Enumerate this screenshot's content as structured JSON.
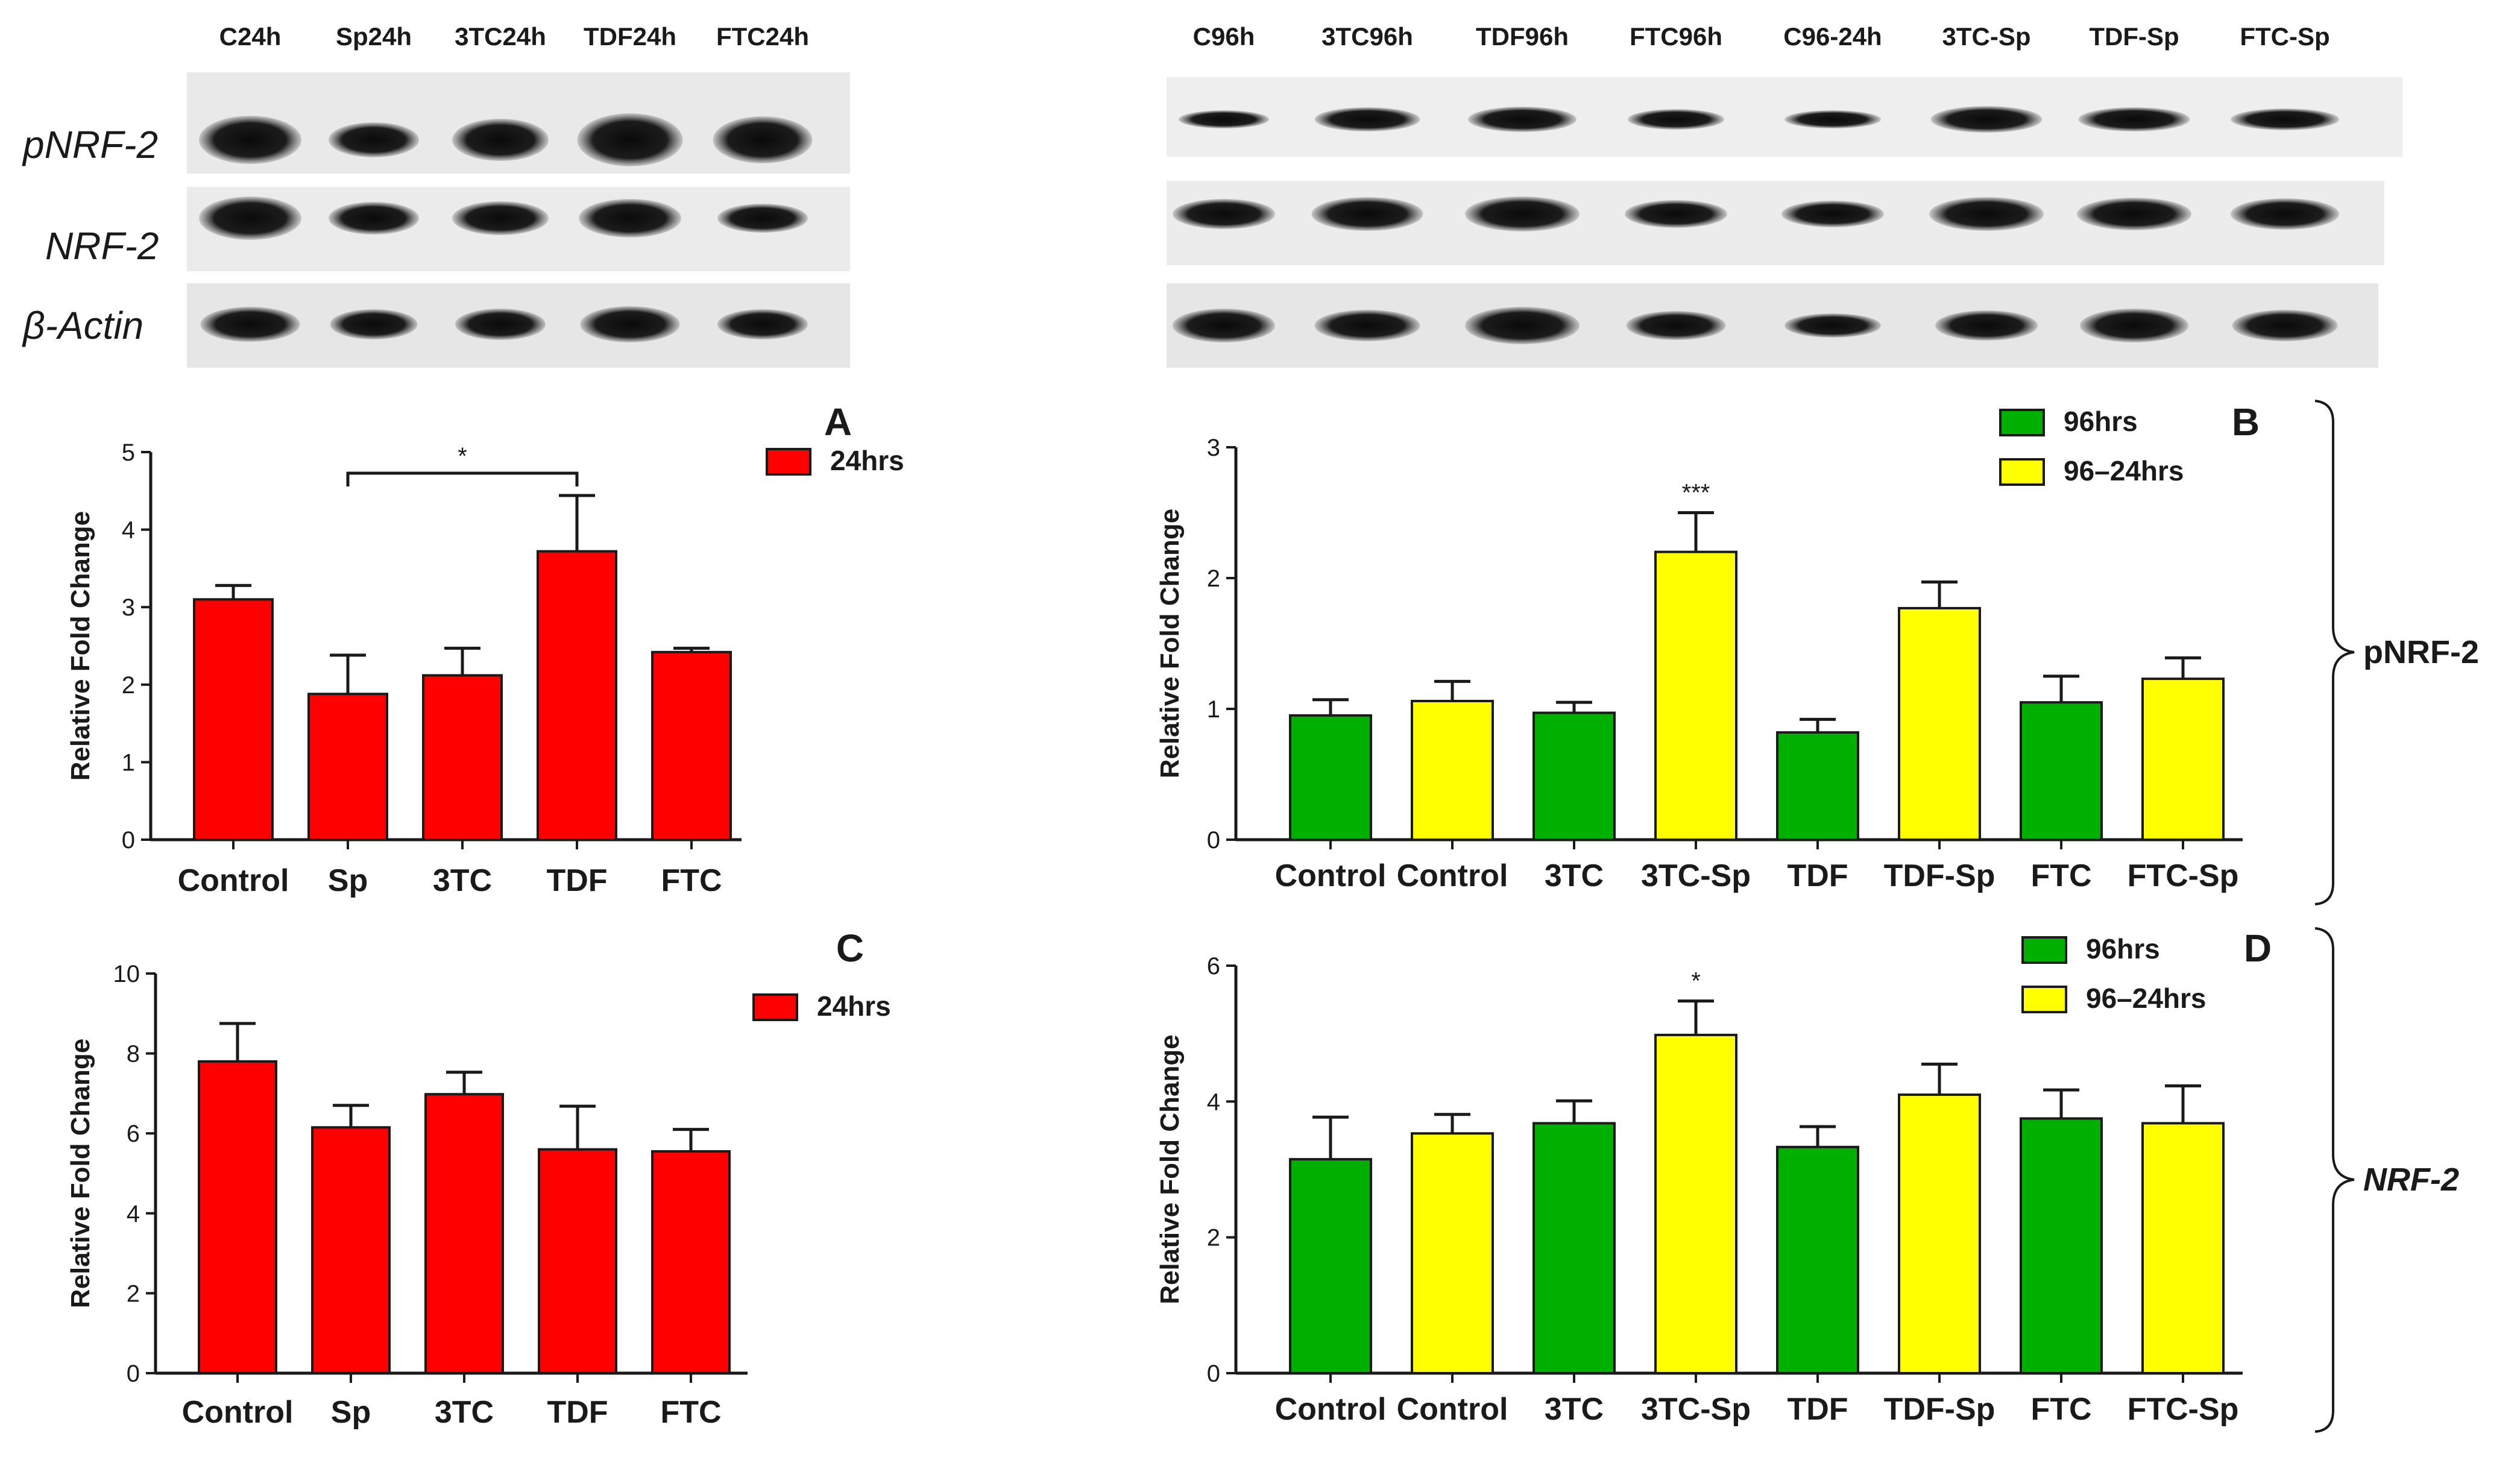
{
  "blots": {
    "left": {
      "lanes": [
        "C24h",
        "Sp24h",
        "3TC24h",
        "TDF24h",
        "FTC24h"
      ],
      "rows": [
        "pNRF-2",
        "NRF-2",
        "β-Actin"
      ]
    },
    "right": {
      "lanes": [
        "C96h",
        "3TC96h",
        "TDF96h",
        "FTC96h",
        "C96-24h",
        "3TC-Sp",
        "TDF-Sp",
        "FTC-Sp"
      ]
    }
  },
  "brackets": {
    "top_label": "pNRF-2",
    "bottom_label": "NRF-2"
  },
  "colors": {
    "red": "#ff0000",
    "green": "#00b000",
    "yellow": "#ffff00",
    "axis": "#1a1a1a"
  },
  "chart_data": [
    {
      "type": "bar",
      "panel": "A",
      "ylabel": "Relative Fold Change",
      "ylim": [
        0,
        5
      ],
      "yticks": [
        "0",
        "1",
        "2",
        "3",
        "4",
        "5"
      ],
      "categories": [
        "Control",
        "Sp",
        "3TC",
        "TDF",
        "FTC"
      ],
      "series": [
        {
          "name": "24hrs",
          "values": [
            3.1,
            1.88,
            2.12,
            3.72,
            2.42
          ],
          "errors": [
            0.18,
            0.5,
            0.35,
            0.72,
            0.05
          ]
        }
      ],
      "bar_colors": [
        "red",
        "red",
        "red",
        "red",
        "red"
      ],
      "legend": [
        {
          "label": "24hrs",
          "color": "red"
        }
      ],
      "significance": [
        {
          "from": 1,
          "to": 3,
          "label": "*"
        }
      ]
    },
    {
      "type": "bar",
      "panel": "B",
      "ylabel": "Relative Fold Change",
      "ylim": [
        0,
        3
      ],
      "yticks": [
        "0",
        "1",
        "2",
        "3"
      ],
      "categories": [
        "Control",
        "Control",
        "3TC",
        "3TC-Sp",
        "TDF",
        "TDF-Sp",
        "FTC",
        "FTC-Sp"
      ],
      "series": [
        {
          "name": "96hrs / 96–24hrs",
          "values": [
            0.95,
            1.06,
            0.97,
            2.2,
            0.82,
            1.77,
            1.05,
            1.23
          ],
          "errors": [
            0.12,
            0.15,
            0.08,
            0.3,
            0.1,
            0.2,
            0.2,
            0.16
          ]
        }
      ],
      "bar_colors": [
        "green",
        "yellow",
        "green",
        "yellow",
        "green",
        "yellow",
        "green",
        "yellow"
      ],
      "legend": [
        {
          "label": "96hrs",
          "color": "green"
        },
        {
          "label": "96–24hrs",
          "color": "yellow"
        }
      ],
      "bar_marks": [
        {
          "index": 3,
          "label": "***"
        }
      ]
    },
    {
      "type": "bar",
      "panel": "C",
      "ylabel": "Relative Fold Change",
      "ylim": [
        0,
        10
      ],
      "yticks": [
        "0",
        "2",
        "4",
        "6",
        "8",
        "10"
      ],
      "categories": [
        "Control",
        "Sp",
        "3TC",
        "TDF",
        "FTC"
      ],
      "series": [
        {
          "name": "24hrs",
          "values": [
            7.8,
            6.15,
            6.98,
            5.6,
            5.55
          ],
          "errors": [
            0.95,
            0.55,
            0.55,
            1.08,
            0.55
          ]
        }
      ],
      "bar_colors": [
        "red",
        "red",
        "red",
        "red",
        "red"
      ],
      "legend": [
        {
          "label": "24hrs",
          "color": "red"
        }
      ]
    },
    {
      "type": "bar",
      "panel": "D",
      "ylabel": "Relative Fold Change",
      "ylim": [
        0,
        6
      ],
      "yticks": [
        "0",
        "2",
        "4",
        "6"
      ],
      "categories": [
        "Control",
        "Control",
        "3TC",
        "3TC-Sp",
        "TDF",
        "TDF-Sp",
        "FTC",
        "FTC-Sp"
      ],
      "series": [
        {
          "name": "96hrs / 96–24hrs",
          "values": [
            3.15,
            3.53,
            3.68,
            4.98,
            3.33,
            4.1,
            3.75,
            3.68
          ],
          "errors": [
            0.62,
            0.28,
            0.33,
            0.5,
            0.3,
            0.45,
            0.42,
            0.55
          ]
        }
      ],
      "bar_colors": [
        "green",
        "yellow",
        "green",
        "yellow",
        "green",
        "yellow",
        "green",
        "yellow"
      ],
      "legend": [
        {
          "label": "96hrs",
          "color": "green"
        },
        {
          "label": "96–24hrs",
          "color": "yellow"
        }
      ],
      "bar_marks": [
        {
          "index": 3,
          "label": "*"
        }
      ]
    }
  ]
}
